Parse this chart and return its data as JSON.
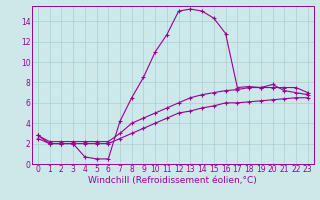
{
  "xlabel": "Windchill (Refroidissement éolien,°C)",
  "x": [
    0,
    1,
    2,
    3,
    4,
    5,
    6,
    7,
    8,
    9,
    10,
    11,
    12,
    13,
    14,
    15,
    16,
    17,
    18,
    19,
    20,
    21,
    22,
    23
  ],
  "line1": [
    2.8,
    2.0,
    2.0,
    2.0,
    0.7,
    0.5,
    0.5,
    4.2,
    6.5,
    8.5,
    11.0,
    12.7,
    15.0,
    15.2,
    15.0,
    14.3,
    12.8,
    7.5,
    7.6,
    7.5,
    7.8,
    7.2,
    7.0,
    6.8
  ],
  "line2": [
    2.8,
    2.2,
    2.2,
    2.2,
    2.2,
    2.2,
    2.2,
    3.0,
    4.0,
    4.5,
    5.0,
    5.5,
    6.0,
    6.5,
    6.8,
    7.0,
    7.2,
    7.3,
    7.5,
    7.5,
    7.5,
    7.5,
    7.5,
    7.0
  ],
  "line3": [
    2.5,
    2.0,
    2.0,
    2.0,
    2.0,
    2.0,
    2.0,
    2.5,
    3.0,
    3.5,
    4.0,
    4.5,
    5.0,
    5.2,
    5.5,
    5.7,
    6.0,
    6.0,
    6.1,
    6.2,
    6.3,
    6.4,
    6.5,
    6.5
  ],
  "line_color": "#990099",
  "bg_color": "#cce8e8",
  "grid_color": "#aacfcf",
  "ylim": [
    0,
    15.5
  ],
  "xlim": [
    -0.5,
    23.5
  ],
  "yticks": [
    0,
    2,
    4,
    6,
    8,
    10,
    12,
    14
  ],
  "xticks": [
    0,
    1,
    2,
    3,
    4,
    5,
    6,
    7,
    8,
    9,
    10,
    11,
    12,
    13,
    14,
    15,
    16,
    17,
    18,
    19,
    20,
    21,
    22,
    23
  ],
  "tick_fontsize": 5.5,
  "xlabel_fontsize": 6.5
}
